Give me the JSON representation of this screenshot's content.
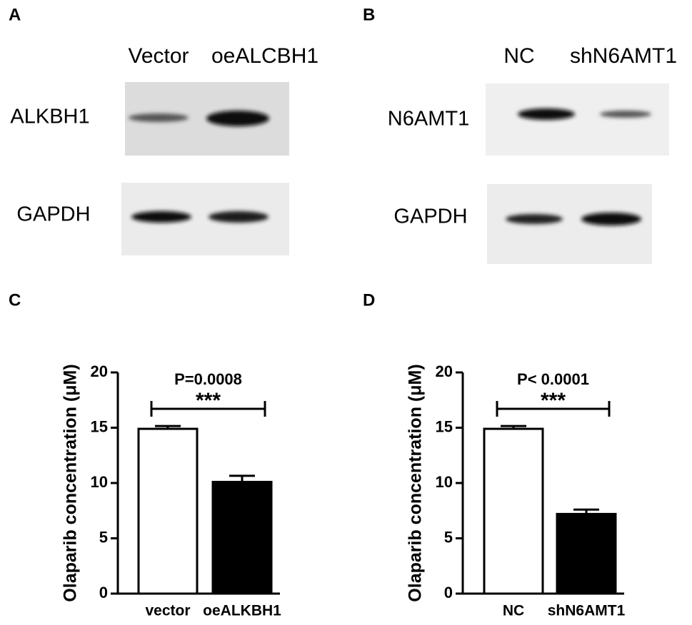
{
  "blots": [
    {
      "panel": "A",
      "lanes": [
        "Vector",
        "oeALCBH1"
      ],
      "rows": [
        "ALKBH1",
        "GAPDH"
      ]
    },
    {
      "panel": "B",
      "lanes": [
        "NC",
        "shN6AMT1"
      ],
      "rows": [
        "N6AMT1",
        "GAPDH"
      ]
    }
  ],
  "chart_data": [
    {
      "type": "bar",
      "panel": "C",
      "ylabel": "Olaparib concentration (μM)",
      "categories": [
        "vector",
        "oeALKBH1"
      ],
      "values": [
        14.9,
        10.1
      ],
      "errors": [
        0.25,
        0.55
      ],
      "colors": [
        "#ffffff",
        "#000000"
      ],
      "ylim": [
        0,
        20
      ],
      "yticks": [
        0,
        5,
        10,
        15,
        20
      ],
      "annotations": [
        "P=0.0008",
        "***"
      ]
    },
    {
      "type": "bar",
      "panel": "D",
      "ylabel": "Olaparib concentration (μM)",
      "categories": [
        "NC",
        "shN6AMT1"
      ],
      "values": [
        14.9,
        7.2
      ],
      "errors": [
        0.25,
        0.4
      ],
      "colors": [
        "#ffffff",
        "#000000"
      ],
      "ylim": [
        0,
        20
      ],
      "yticks": [
        0,
        5,
        10,
        15,
        20
      ],
      "annotations": [
        "P< 0.0001",
        "***"
      ]
    }
  ]
}
